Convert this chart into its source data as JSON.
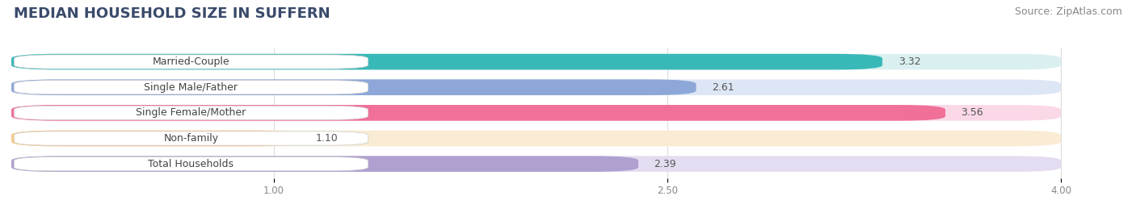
{
  "title": "MEDIAN HOUSEHOLD SIZE IN SUFFERN",
  "source": "Source: ZipAtlas.com",
  "categories": [
    "Married-Couple",
    "Single Male/Father",
    "Single Female/Mother",
    "Non-family",
    "Total Households"
  ],
  "values": [
    3.32,
    2.61,
    3.56,
    1.1,
    2.39
  ],
  "bar_colors": [
    "#39b8b8",
    "#8da8d8",
    "#f07098",
    "#f5ca8c",
    "#b0a0d0"
  ],
  "bar_bg_colors": [
    "#daf0f0",
    "#dde6f5",
    "#fad8e8",
    "#faebd4",
    "#e4dcf0"
  ],
  "xlim": [
    0.0,
    4.2
  ],
  "xmin": 0.0,
  "xmax": 4.0,
  "xticks": [
    1.0,
    2.5,
    4.0
  ],
  "value_labels": [
    "3.32",
    "2.61",
    "3.56",
    "1.10",
    "2.39"
  ],
  "title_fontsize": 13,
  "source_fontsize": 9,
  "label_fontsize": 9,
  "value_fontsize": 9,
  "background_color": "#ffffff",
  "bar_height": 0.62,
  "bar_gap": 0.38
}
